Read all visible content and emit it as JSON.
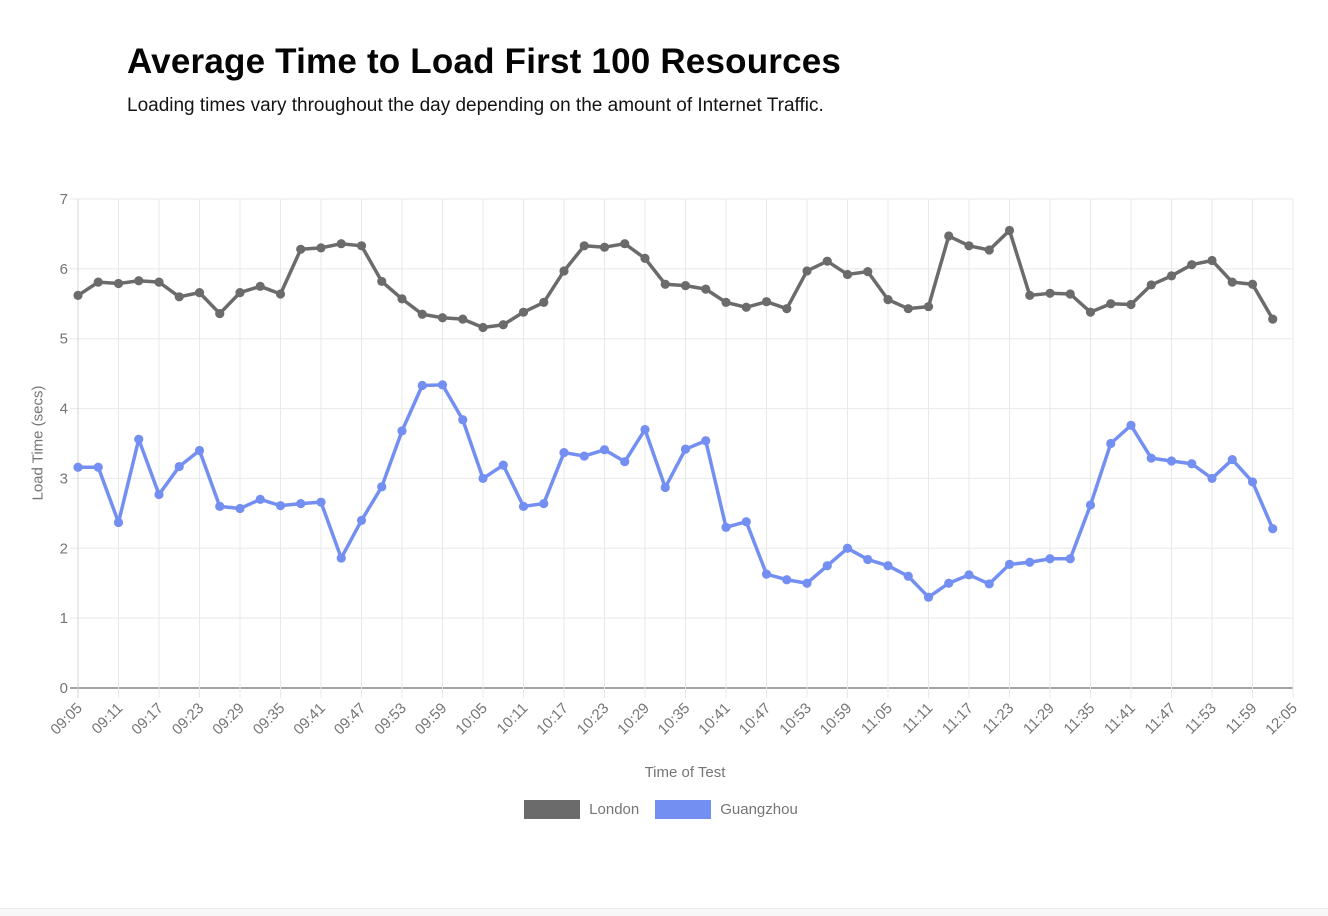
{
  "page": {
    "title": "Average Time to Load First 100 Resources",
    "subtitle": "Loading times vary throughout the day depending on the amount of Internet Traffic."
  },
  "chart_data": {
    "type": "line",
    "title": "Average Time to Load First 100 Resources",
    "subtitle": "Loading times vary throughout the day depending on the amount of Internet Traffic.",
    "xlabel": "Time of Test",
    "ylabel": "Load Time (secs)",
    "ylim": [
      0,
      7
    ],
    "y_ticks": [
      0,
      1,
      2,
      3,
      4,
      5,
      6,
      7
    ],
    "grid": true,
    "legend_position": "bottom",
    "x_tick_labels": [
      "09:05",
      "09:11",
      "09:17",
      "09:23",
      "09:29",
      "09:35",
      "09:41",
      "09:47",
      "09:53",
      "09:59",
      "10:05",
      "10:11",
      "10:17",
      "10:23",
      "10:29",
      "10:35",
      "10:41",
      "10:47",
      "10:53",
      "10:59",
      "11:05",
      "11:11",
      "11:17",
      "11:23",
      "11:29",
      "11:35",
      "11:41",
      "11:47",
      "11:53",
      "11:59",
      "12:05"
    ],
    "x": [
      "09:05",
      "09:08",
      "09:11",
      "09:14",
      "09:17",
      "09:20",
      "09:23",
      "09:26",
      "09:29",
      "09:32",
      "09:35",
      "09:38",
      "09:41",
      "09:44",
      "09:47",
      "09:50",
      "09:53",
      "09:56",
      "09:59",
      "10:02",
      "10:05",
      "10:08",
      "10:11",
      "10:14",
      "10:17",
      "10:20",
      "10:23",
      "10:26",
      "10:29",
      "10:32",
      "10:35",
      "10:38",
      "10:41",
      "10:44",
      "10:47",
      "10:50",
      "10:53",
      "10:56",
      "10:59",
      "11:02",
      "11:05",
      "11:08",
      "11:11",
      "11:14",
      "11:17",
      "11:20",
      "11:23",
      "11:26",
      "11:29",
      "11:32",
      "11:35",
      "11:38",
      "11:41",
      "11:44",
      "11:47",
      "11:50",
      "11:53",
      "11:56",
      "11:59",
      "12:02"
    ],
    "series": [
      {
        "name": "London",
        "color": "#6b6b6b",
        "values": [
          5.62,
          5.81,
          5.79,
          5.83,
          5.81,
          5.6,
          5.66,
          5.36,
          5.66,
          5.75,
          5.64,
          6.28,
          6.3,
          6.36,
          6.33,
          5.82,
          5.57,
          5.35,
          5.3,
          5.28,
          5.16,
          5.2,
          5.38,
          5.52,
          5.97,
          6.33,
          6.31,
          6.36,
          6.15,
          5.78,
          5.76,
          5.71,
          5.52,
          5.45,
          5.53,
          5.43,
          5.97,
          6.11,
          5.92,
          5.96,
          5.56,
          5.43,
          5.46,
          6.47,
          6.33,
          6.27,
          6.55,
          5.62,
          5.65,
          5.64,
          5.38,
          5.5,
          5.49,
          5.77,
          5.9,
          6.06,
          6.12,
          5.81,
          5.78,
          5.28
        ]
      },
      {
        "name": "Guangzhou",
        "color": "#748ff2",
        "values": [
          3.16,
          3.16,
          2.37,
          3.56,
          2.77,
          3.17,
          3.4,
          2.6,
          2.57,
          2.7,
          2.61,
          2.64,
          2.66,
          1.86,
          2.4,
          2.88,
          3.68,
          4.33,
          4.34,
          3.84,
          3.0,
          3.19,
          2.6,
          2.64,
          3.37,
          3.32,
          3.41,
          3.24,
          3.7,
          2.87,
          3.42,
          3.54,
          2.3,
          2.38,
          1.63,
          1.55,
          1.5,
          1.75,
          2.0,
          1.84,
          1.75,
          1.6,
          1.3,
          1.5,
          1.62,
          1.49,
          1.77,
          1.8,
          1.85,
          1.85,
          2.62,
          3.5,
          3.76,
          3.29,
          3.25,
          3.21,
          3.0,
          3.27,
          2.95,
          2.28
        ]
      }
    ]
  }
}
